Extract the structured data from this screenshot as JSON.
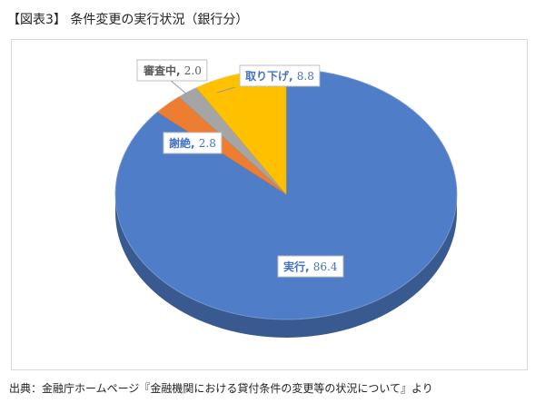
{
  "figure_title": "【図表3】 条件変更の実行状況（銀行分）",
  "source_text": "出典：金融庁ホームページ『金融機関における貸付条件の変更等の状況について』より",
  "chart_data": {
    "type": "pie",
    "title": "",
    "three_d": true,
    "categories": [
      "実行",
      "謝絶",
      "審査中",
      "取り下げ"
    ],
    "values": [
      86.4,
      2.8,
      2.0,
      8.8
    ],
    "colors": [
      "#4F7DC8",
      "#ED7D31",
      "#A5A5A5",
      "#FFC000"
    ],
    "data_labels": [
      {
        "category": "実行",
        "value": "86.4",
        "text_color": "#4472C4"
      },
      {
        "category": "謝絶",
        "value": "2.8",
        "text_color": "#4472C4"
      },
      {
        "category": "審査中",
        "value": "2.0",
        "text_color": "#595959"
      },
      {
        "category": "取り下げ",
        "value": "8.8",
        "text_color": "#4472C4"
      }
    ],
    "start_position": "12 o'clock",
    "direction": "clockwise",
    "legend": "none"
  }
}
